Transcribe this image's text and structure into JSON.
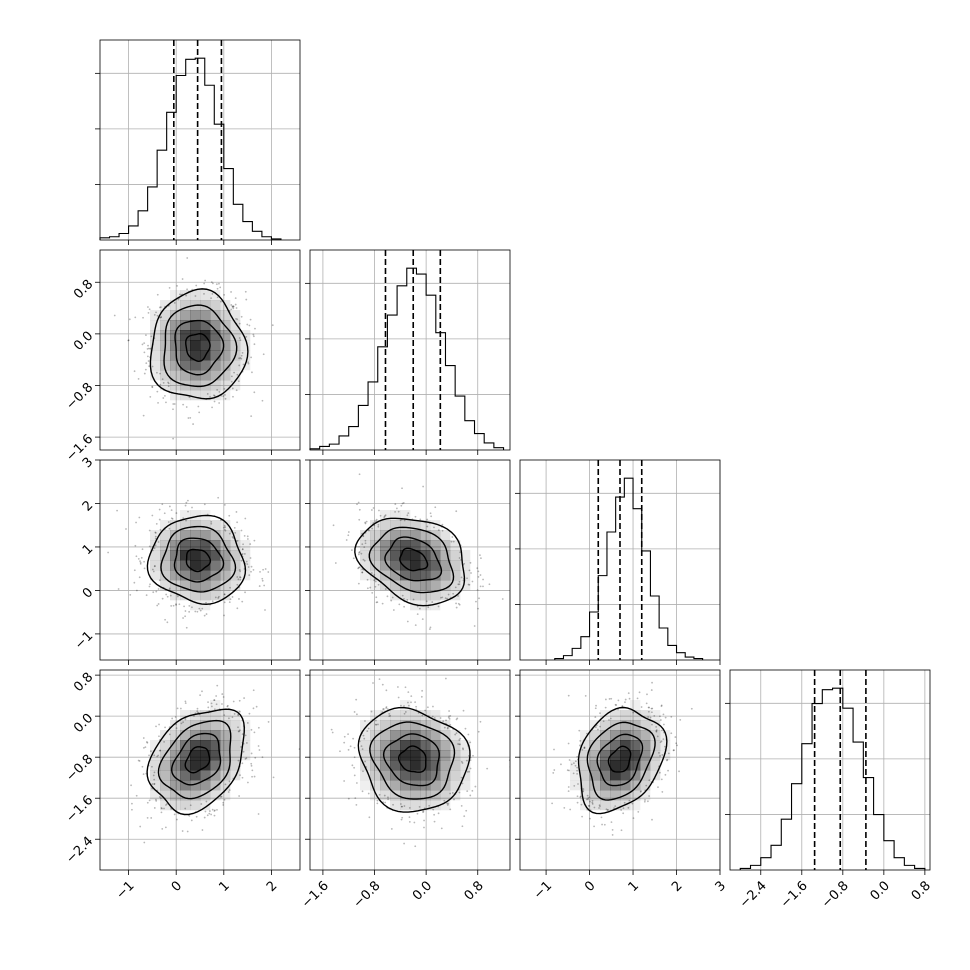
{
  "chart_data": {
    "type": "corner",
    "grid": true,
    "colors": {
      "line": "#000000",
      "grid": "#b0b0b0",
      "density": "#000000",
      "background": "#ffffff"
    },
    "parameters": [
      {
        "index": 0,
        "range": [
          -1.6,
          2.6
        ],
        "ticks": [
          -1,
          0,
          1,
          2
        ],
        "tick_labels": [
          "−1",
          "0",
          "1",
          "2"
        ],
        "mean": 0.45,
        "std": 0.5,
        "quantiles": [
          -0.05,
          0.45,
          0.95
        ]
      },
      {
        "index": 1,
        "range": [
          -1.8,
          1.3
        ],
        "ticks": [
          -1.6,
          -0.8,
          0.0,
          0.8
        ],
        "tick_labels": [
          "−1.6",
          "−0.8",
          "0.0",
          "0.8"
        ],
        "mean": -0.2,
        "std": 0.42,
        "quantiles": [
          -0.63,
          -0.2,
          0.22
        ]
      },
      {
        "index": 2,
        "range": [
          -1.6,
          3.0
        ],
        "ticks": [
          -1,
          0,
          1,
          2,
          3
        ],
        "tick_labels": [
          "−1",
          "0",
          "1",
          "2",
          "3"
        ],
        "mean": 0.7,
        "std": 0.5,
        "quantiles": [
          0.2,
          0.7,
          1.2
        ]
      },
      {
        "index": 3,
        "range": [
          -3.0,
          0.9
        ],
        "ticks": [
          -2.4,
          -1.6,
          -0.8,
          0.0,
          0.8
        ],
        "tick_labels": [
          "−2.4",
          "−1.6",
          "−0.8",
          "0.0",
          "0.8"
        ],
        "mean": -0.85,
        "std": 0.5,
        "quantiles": [
          -1.35,
          -0.85,
          -0.35
        ]
      }
    ],
    "histograms": [
      {
        "param": 0,
        "edges": [
          -1.6,
          -1.4,
          -1.2,
          -1.0,
          -0.8,
          -0.6,
          -0.4,
          -0.2,
          0.0,
          0.2,
          0.4,
          0.6,
          0.8,
          1.0,
          1.2,
          1.4,
          1.6,
          1.8,
          2.0,
          2.2
        ],
        "counts": [
          2,
          3,
          6,
          13,
          27,
          49,
          83,
          118,
          152,
          167,
          168,
          143,
          107,
          66,
          33,
          17,
          8,
          3,
          1
        ]
      },
      {
        "param": 1,
        "edges": [
          -1.8,
          -1.65,
          -1.5,
          -1.35,
          -1.2,
          -1.05,
          -0.9,
          -0.75,
          -0.6,
          -0.45,
          -0.3,
          -0.15,
          0.0,
          0.15,
          0.3,
          0.45,
          0.6,
          0.75,
          0.9,
          1.05,
          1.2
        ],
        "counts": [
          1,
          3,
          5,
          12,
          20,
          38,
          58,
          88,
          115,
          140,
          155,
          150,
          132,
          100,
          72,
          46,
          25,
          14,
          6,
          2
        ]
      },
      {
        "param": 2,
        "edges": [
          -0.8,
          -0.6,
          -0.4,
          -0.2,
          0.0,
          0.2,
          0.4,
          0.6,
          0.8,
          1.0,
          1.2,
          1.4,
          1.6,
          1.8,
          2.0,
          2.2,
          2.4,
          2.6
        ],
        "counts": [
          1,
          3,
          8,
          16,
          33,
          58,
          88,
          112,
          125,
          104,
          75,
          44,
          22,
          10,
          5,
          2,
          1
        ]
      },
      {
        "param": 3,
        "edges": [
          -2.8,
          -2.6,
          -2.4,
          -2.2,
          -2.0,
          -1.8,
          -1.6,
          -1.4,
          -1.2,
          -1.0,
          -0.8,
          -0.6,
          -0.4,
          -0.2,
          0.0,
          0.2,
          0.4,
          0.6,
          0.8
        ],
        "counts": [
          1,
          3,
          8,
          16,
          33,
          56,
          82,
          108,
          117,
          118,
          105,
          83,
          60,
          36,
          19,
          8,
          3,
          1
        ]
      }
    ],
    "joint_panels": [
      {
        "x_param": 0,
        "y_param": 1,
        "center": [
          0.45,
          -0.2
        ],
        "sigma": [
          0.5,
          0.42
        ],
        "rho": 0.0,
        "peak_mode": [
          0.4,
          -0.05
        ]
      },
      {
        "x_param": 0,
        "y_param": 2,
        "center": [
          0.45,
          0.7
        ],
        "sigma": [
          0.5,
          0.5
        ],
        "rho": -0.05,
        "peak_mode": [
          0.45,
          0.8
        ]
      },
      {
        "x_param": 1,
        "y_param": 2,
        "center": [
          -0.2,
          0.7
        ],
        "sigma": [
          0.42,
          0.5
        ],
        "rho": -0.25,
        "peak_mode": [
          -0.2,
          0.8
        ]
      },
      {
        "x_param": 0,
        "y_param": 3,
        "center": [
          0.45,
          -0.85
        ],
        "sigma": [
          0.5,
          0.5
        ],
        "rho": 0.3,
        "peak_mode": [
          0.5,
          -0.85
        ]
      },
      {
        "x_param": 1,
        "y_param": 3,
        "center": [
          -0.2,
          -0.85
        ],
        "sigma": [
          0.42,
          0.5
        ],
        "rho": -0.1,
        "peak_mode": [
          -0.2,
          -0.8
        ]
      },
      {
        "x_param": 2,
        "y_param": 3,
        "center": [
          0.7,
          -0.85
        ],
        "sigma": [
          0.5,
          0.5
        ],
        "rho": 0.25,
        "peak_mode": [
          0.75,
          -0.9
        ]
      }
    ],
    "contour_levels_sigma": [
      0.5,
      1.0,
      1.5,
      2.0
    ]
  }
}
